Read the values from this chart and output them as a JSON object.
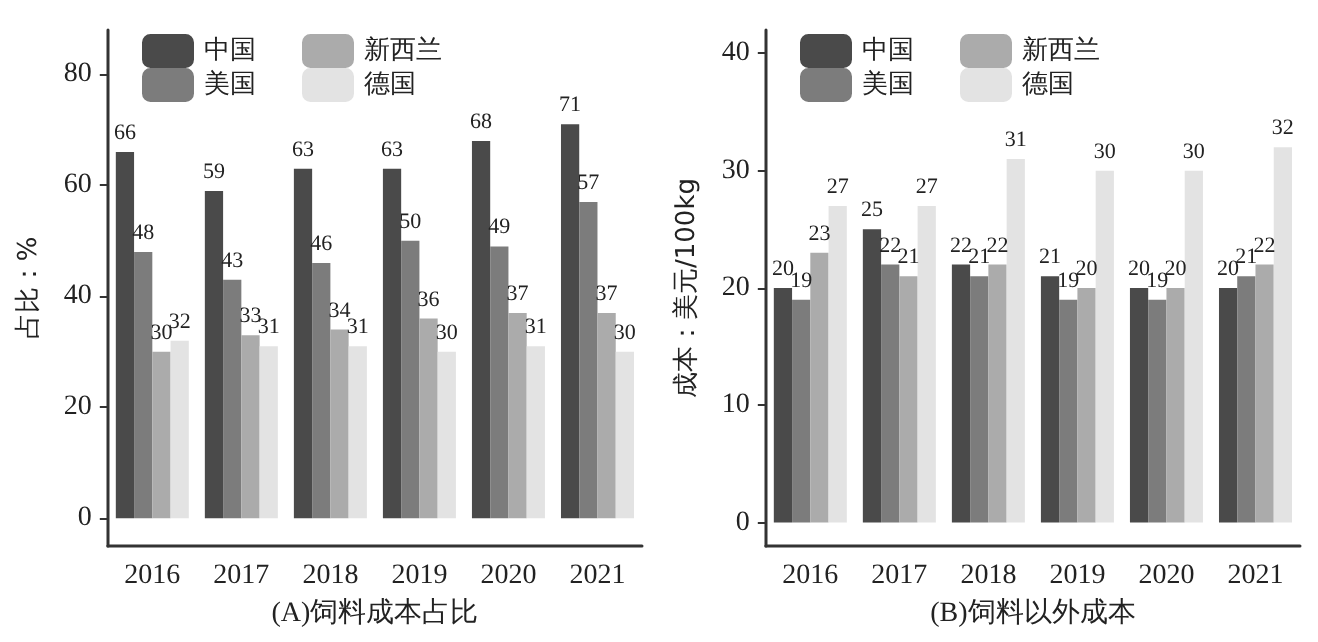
{
  "chart_data": [
    {
      "type": "bar",
      "xlabel": "(A)饲料成本占比",
      "ylabel": "占比：%",
      "categories": [
        "2016",
        "2017",
        "2018",
        "2019",
        "2020",
        "2021"
      ],
      "series": [
        {
          "name": "中国",
          "color": "#4a4a4a",
          "values": [
            66,
            59,
            63,
            63,
            68,
            71
          ]
        },
        {
          "name": "美国",
          "color": "#7c7c7c",
          "values": [
            48,
            43,
            46,
            50,
            49,
            57
          ]
        },
        {
          "name": "新西兰",
          "color": "#ababab",
          "values": [
            30,
            33,
            34,
            36,
            37,
            37
          ]
        },
        {
          "name": "德国",
          "color": "#e3e3e3",
          "values": [
            32,
            31,
            31,
            30,
            31,
            30
          ]
        }
      ],
      "ylim": [
        -5,
        88
      ],
      "yticks": [
        0,
        20,
        40,
        60,
        80
      ],
      "grid": false,
      "legend": "top left",
      "data_labels": true
    },
    {
      "type": "bar",
      "xlabel": "(B)饲料以外成本",
      "ylabel": "成本：美元/100kg",
      "categories": [
        "2016",
        "2017",
        "2018",
        "2019",
        "2020",
        "2021"
      ],
      "series": [
        {
          "name": "中国",
          "color": "#4a4a4a",
          "values": [
            20,
            25,
            22,
            21,
            20,
            20
          ]
        },
        {
          "name": "美国",
          "color": "#7c7c7c",
          "values": [
            19,
            22,
            21,
            19,
            19,
            21
          ]
        },
        {
          "name": "新西兰",
          "color": "#ababab",
          "values": [
            23,
            21,
            22,
            20,
            20,
            22
          ]
        },
        {
          "name": "德国",
          "color": "#e3e3e3",
          "values": [
            27,
            27,
            31,
            30,
            30,
            32
          ]
        }
      ],
      "ylim": [
        -2,
        42
      ],
      "yticks": [
        0,
        10,
        20,
        30,
        40
      ],
      "grid": false,
      "legend": "top left",
      "data_labels": true
    }
  ]
}
